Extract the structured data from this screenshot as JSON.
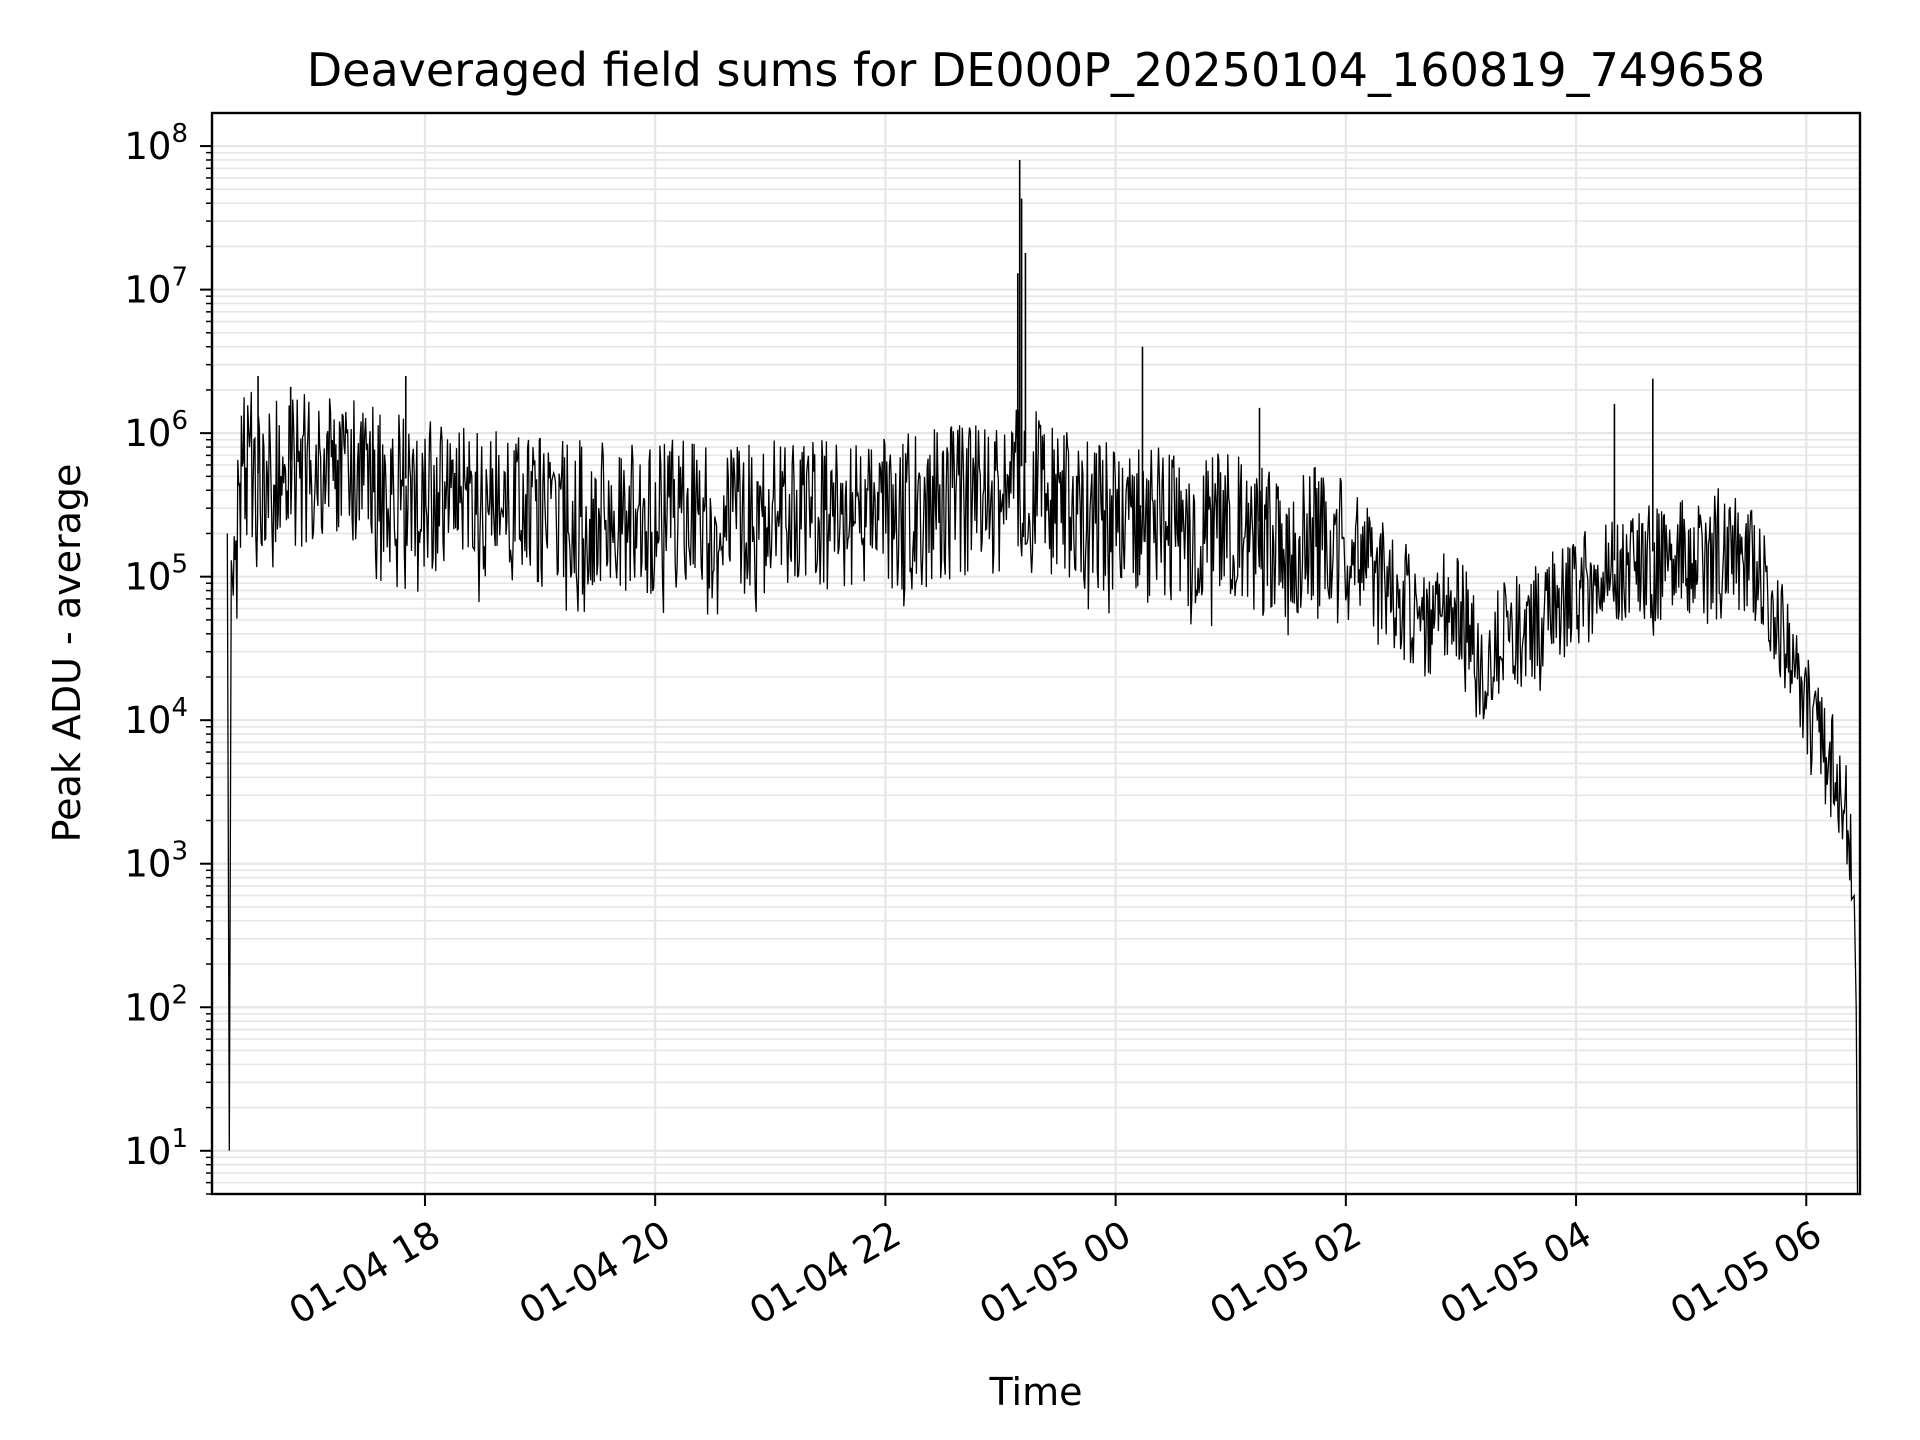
{
  "chart_data": {
    "type": "line",
    "title": "Deaveraged field sums for DE000P_20250104_160819_749658",
    "xlabel": "Time",
    "ylabel": "Peak ADU - average",
    "yscale": "log",
    "ylim": [
      5,
      170000000
    ],
    "xlim": [
      "2025-01-04 16:09",
      "2025-01-05 06:28"
    ],
    "grid": "major and minor",
    "x_ticks": [
      {
        "value": "2025-01-04 18:00",
        "label": "01-04 18"
      },
      {
        "value": "2025-01-04 20:00",
        "label": "01-04 20"
      },
      {
        "value": "2025-01-04 22:00",
        "label": "01-04 22"
      },
      {
        "value": "2025-01-05 00:00",
        "label": "01-05 00"
      },
      {
        "value": "2025-01-05 02:00",
        "label": "01-05 02"
      },
      {
        "value": "2025-01-05 04:00",
        "label": "01-05 04"
      },
      {
        "value": "2025-01-05 06:00",
        "label": "01-05 06"
      }
    ],
    "y_ticks": [
      {
        "value": 10,
        "base": "10",
        "exp": "1"
      },
      {
        "value": 100,
        "base": "10",
        "exp": "2"
      },
      {
        "value": 1000,
        "base": "10",
        "exp": "3"
      },
      {
        "value": 10000,
        "base": "10",
        "exp": "4"
      },
      {
        "value": 100000,
        "base": "10",
        "exp": "5"
      },
      {
        "value": 1000000,
        "base": "10",
        "exp": "6"
      },
      {
        "value": 10000000,
        "base": "10",
        "exp": "7"
      },
      {
        "value": 100000000,
        "base": "10",
        "exp": "8"
      }
    ],
    "series": [
      {
        "line_color": "#000000",
        "x": [
          "2025-01-04 16:17",
          "2025-01-04 16:18",
          "2025-01-04 16:19",
          "2025-01-04 16:22",
          "2025-01-04 16:25",
          "2025-01-04 16:28",
          "2025-01-04 16:32",
          "2025-01-04 16:36",
          "2025-01-04 16:40",
          "2025-01-04 16:45",
          "2025-01-04 16:50",
          "2025-01-04 17:00",
          "2025-01-04 17:15",
          "2025-01-04 17:30",
          "2025-01-04 17:45",
          "2025-01-04 18:00",
          "2025-01-04 18:20",
          "2025-01-04 18:40",
          "2025-01-04 19:00",
          "2025-01-04 19:30",
          "2025-01-04 20:00",
          "2025-01-04 20:30",
          "2025-01-04 21:00",
          "2025-01-04 21:30",
          "2025-01-04 22:00",
          "2025-01-04 22:30",
          "2025-01-04 23:00",
          "2025-01-04 23:15",
          "2025-01-04 23:30",
          "2025-01-04 23:45",
          "2025-01-05 00:00",
          "2025-01-05 00:30",
          "2025-01-05 01:00",
          "2025-01-05 01:30",
          "2025-01-05 02:00",
          "2025-01-05 02:20",
          "2025-01-05 02:40",
          "2025-01-05 03:00",
          "2025-01-05 03:10",
          "2025-01-05 03:20",
          "2025-01-05 03:40",
          "2025-01-05 04:00",
          "2025-01-05 04:20",
          "2025-01-05 04:40",
          "2025-01-05 05:00",
          "2025-01-05 05:15",
          "2025-01-05 05:30",
          "2025-01-05 05:45",
          "2025-01-05 06:00",
          "2025-01-05 06:10",
          "2025-01-05 06:14",
          "2025-01-05 06:17",
          "2025-01-05 06:20",
          "2025-01-05 06:22",
          "2025-01-05 06:25",
          "2025-01-05 06:26"
        ],
        "values": [
          200000,
          10,
          130000,
          300000,
          700000,
          900000,
          500000,
          600000,
          700000,
          600000,
          650000,
          700000,
          700000,
          600000,
          500000,
          450000,
          400000,
          380000,
          350000,
          330000,
          330000,
          320000,
          340000,
          330000,
          350000,
          400000,
          450000,
          650000,
          400000,
          350000,
          320000,
          280000,
          260000,
          230000,
          200000,
          120000,
          60000,
          80000,
          25000,
          40000,
          60000,
          100000,
          130000,
          150000,
          160000,
          200000,
          150000,
          60000,
          15000,
          8000,
          6000,
          4000,
          3000,
          2000,
          600,
          100
        ]
      }
    ],
    "spikes": [
      {
        "x": "2025-01-04 16:33",
        "value": 2500000
      },
      {
        "x": "2025-01-04 16:50",
        "value": 2100000
      },
      {
        "x": "2025-01-04 17:50",
        "value": 2500000
      },
      {
        "x": "2025-01-04 23:09",
        "value": 13000000
      },
      {
        "x": "2025-01-04 23:10",
        "value": 80000000
      },
      {
        "x": "2025-01-04 23:11",
        "value": 43000000
      },
      {
        "x": "2025-01-04 23:13",
        "value": 18000000
      },
      {
        "x": "2025-01-05 00:14",
        "value": 4000000
      },
      {
        "x": "2025-01-05 01:15",
        "value": 1500000
      },
      {
        "x": "2025-01-05 04:20",
        "value": 1600000
      },
      {
        "x": "2025-01-05 04:40",
        "value": 2400000
      }
    ]
  }
}
